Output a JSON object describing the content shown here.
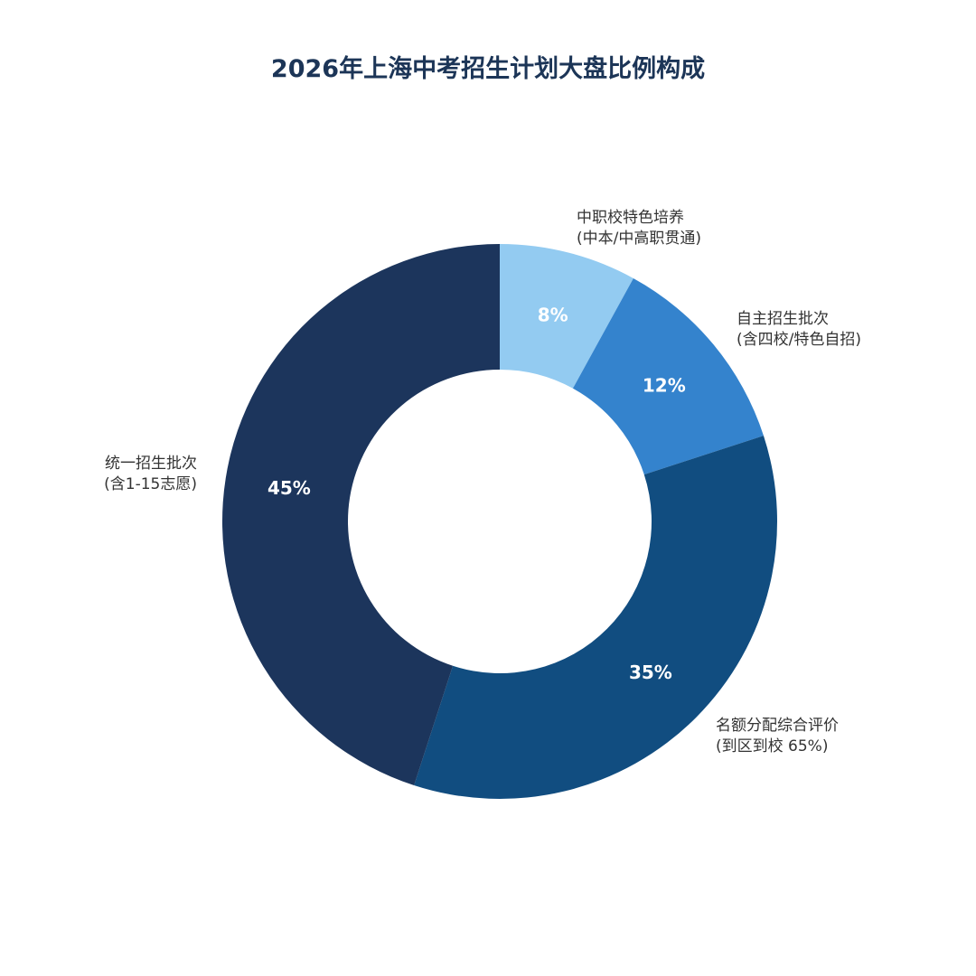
{
  "chart_data": {
    "type": "pie",
    "title": "2026年上海中考招生计划大盘比例构成",
    "unit": "%",
    "slices": [
      {
        "label": "中职校特色培养",
        "sublabel": "(中本/中高职贯通)",
        "value": 8,
        "value_label": "8%",
        "color": "#93cbf1"
      },
      {
        "label": "自主招生批次",
        "sublabel": "(含四校/特色自招)",
        "value": 12,
        "value_label": "12%",
        "color": "#3483cd"
      },
      {
        "label": "名额分配综合评价",
        "sublabel": "(到区到校 65%)",
        "value": 35,
        "value_label": "35%",
        "color": "#114d80"
      },
      {
        "label": "统一招生批次",
        "sublabel": "(含1-15志愿)",
        "value": 45,
        "value_label": "45%",
        "color": "#1c355c"
      }
    ]
  }
}
